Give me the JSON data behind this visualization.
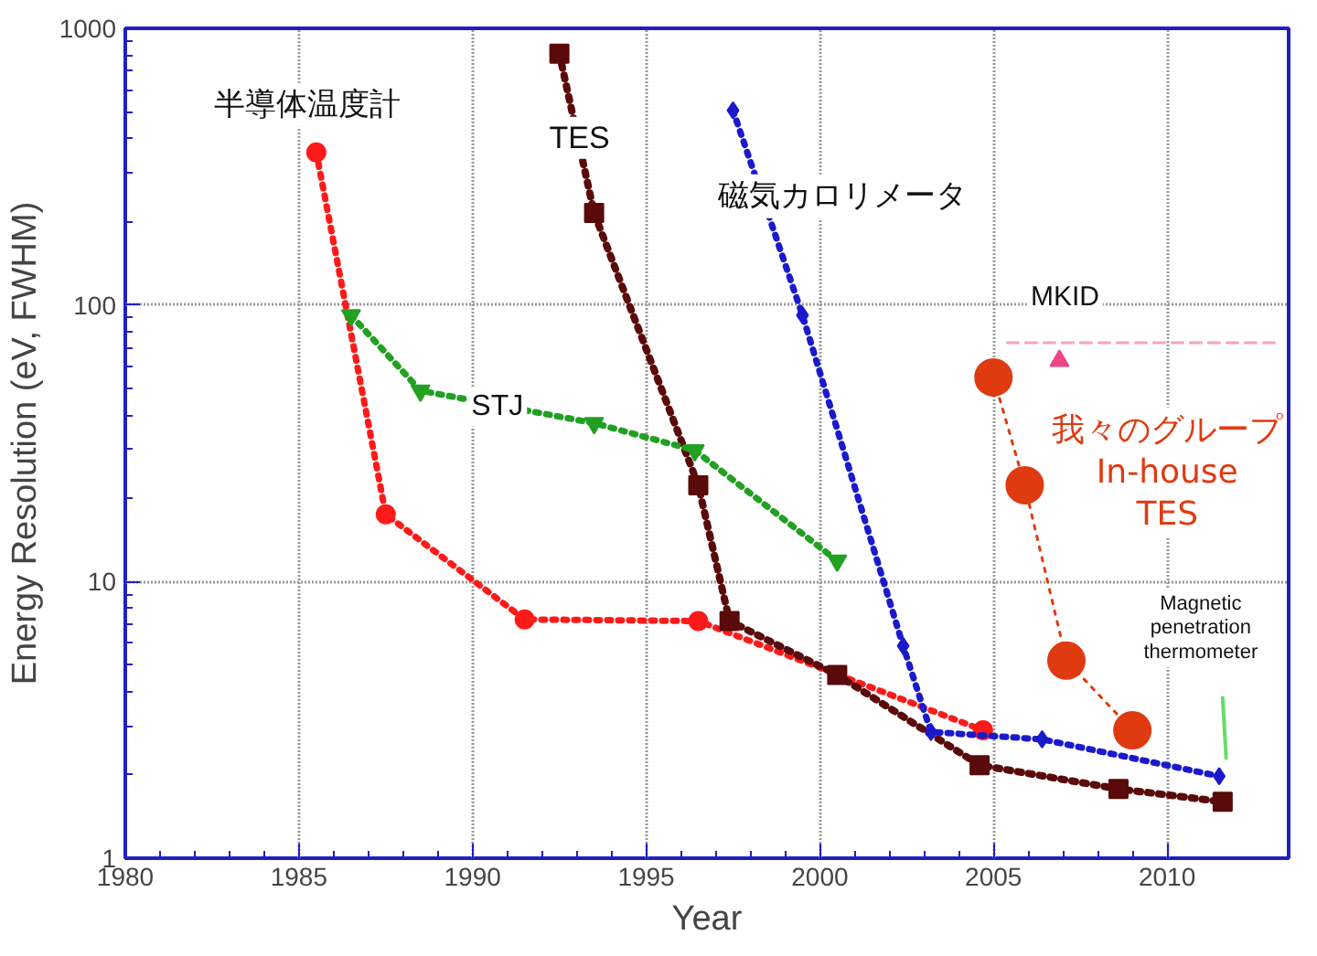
{
  "chart_data": {
    "type": "line",
    "xlabel": "Year",
    "ylabel": "Energy Resolution (eV, FWHM)",
    "log": "y",
    "grid": true,
    "line_style": "dotted",
    "xlim": [
      1980,
      2013.5
    ],
    "ylim": [
      1,
      1000
    ],
    "xticks": [
      1980,
      1985,
      1990,
      1995,
      2000,
      2005,
      2010
    ],
    "yticks": [
      1,
      10,
      100,
      1000
    ],
    "series": [
      {
        "name": "半導体温度計",
        "color": "#ff1a1a",
        "marker": "circle",
        "x": [
          1985.5,
          1987.5,
          1991.5,
          1996.5,
          2004.7
        ],
        "values": [
          356,
          17.5,
          7.3,
          7.2,
          2.9
        ]
      },
      {
        "name": "TES",
        "color": "#5a0a0a",
        "marker": "square",
        "x": [
          1992.5,
          1993.5,
          1996.5,
          1997.4,
          2000.5,
          2004.6,
          2008.6,
          2011.6
        ],
        "values": [
          809,
          215,
          22.3,
          7.2,
          4.6,
          2.17,
          1.78,
          1.6
        ]
      },
      {
        "name": "磁気カロリメータ",
        "color": "#1a1acc",
        "marker": "diamond",
        "x": [
          1997.5,
          1999.5,
          2002.4,
          2003.2,
          2006.4,
          2011.5
        ],
        "values": [
          505,
          91.8,
          5.85,
          2.86,
          2.69,
          1.98
        ]
      },
      {
        "name": "STJ",
        "color": "#22a022",
        "marker": "triangle",
        "x": [
          1986.5,
          1988.5,
          1993.5,
          1996.4,
          2000.5
        ],
        "values": [
          91.8,
          49,
          37.4,
          29.8,
          11.9
        ]
      },
      {
        "name": "MKID",
        "color": "#ee4488",
        "marker": "triangle",
        "x": [
          2006.9
        ],
        "values": [
          62.8
        ]
      },
      {
        "color": "#f4a0c0",
        "line_style": "dashed",
        "marker": "none",
        "x": [
          2005.4,
          2013.2
        ],
        "values": [
          73,
          73
        ]
      },
      {
        "name": "我々のグループ\nIn-house\nTES",
        "color": "#e03a10",
        "marker": "circle",
        "x": [
          2005.0,
          2005.9,
          2007.1,
          2009.0
        ],
        "values": [
          54.7,
          22.3,
          5.18,
          2.9
        ]
      },
      {
        "name": "Magnetic\npenetration\nthermometer",
        "color": "#66dd66",
        "line_style": "solid",
        "marker": "none",
        "x": [
          2011.6,
          2011.7
        ],
        "values": [
          3.8,
          2.3
        ]
      }
    ]
  }
}
